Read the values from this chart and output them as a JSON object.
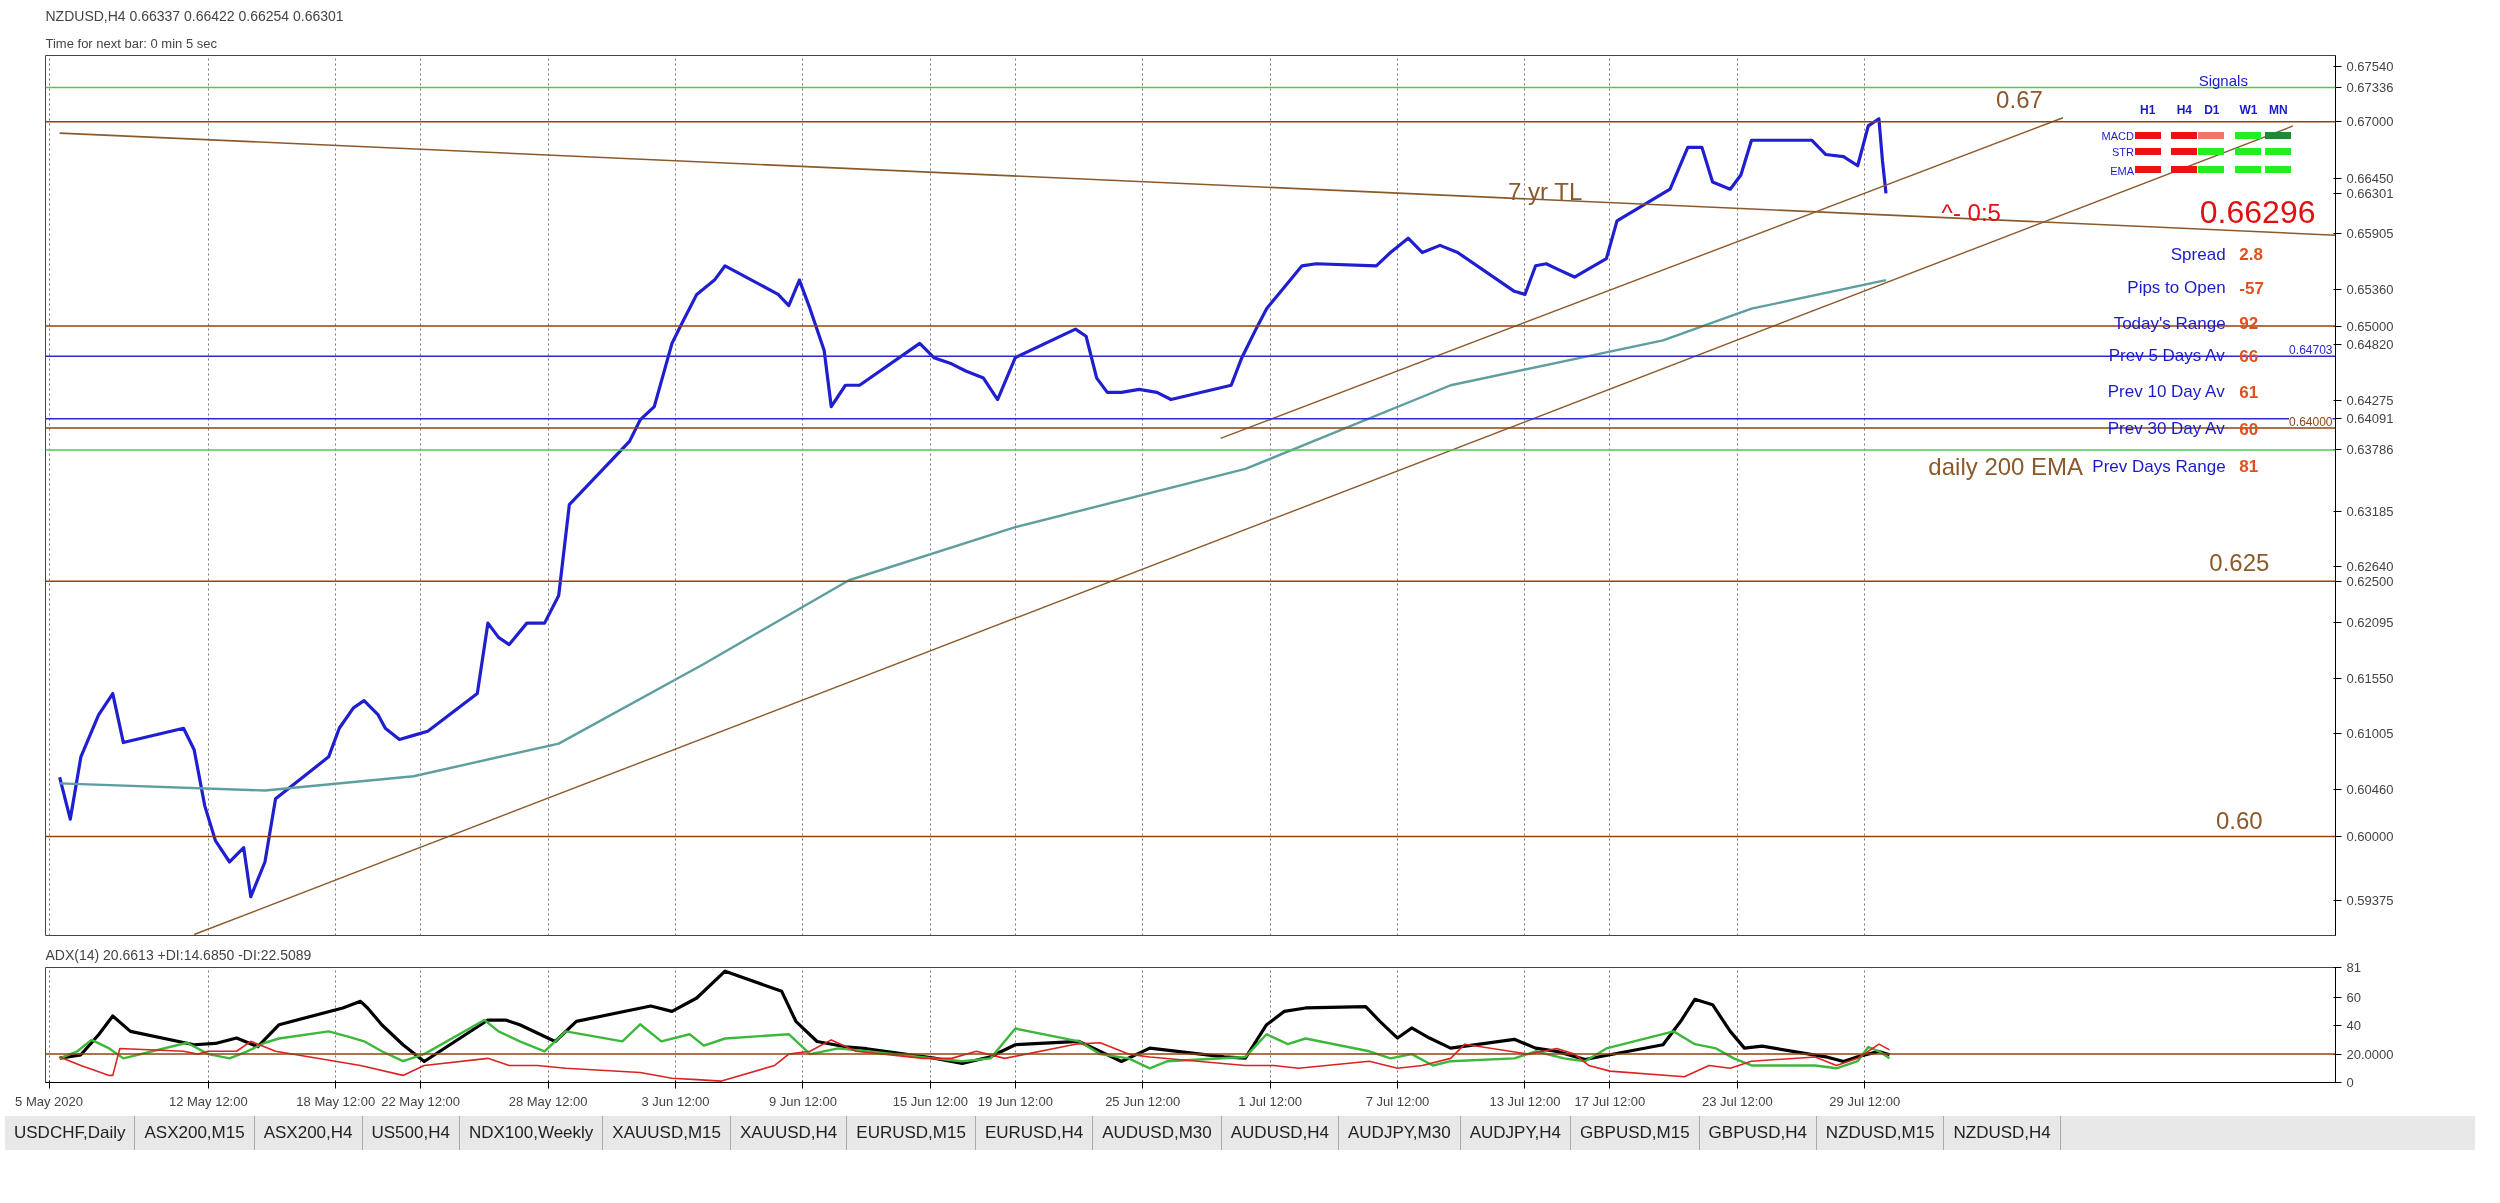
{
  "chart_data": [
    {
      "type": "line",
      "title": "NZDUSD,H4  0.66337 0.66422 0.66254 0.66301",
      "subtitle": "Time for next bar: 0 min 5 sec",
      "xlim": [
        "2020-05-04T20:00",
        "2020-08-20T16:00"
      ],
      "ylim": [
        0.5903,
        0.6765
      ],
      "tick_labels": "y",
      "grid": "x",
      "xticks": [
        {
          "value": "2020-05-05",
          "label": null
        },
        {
          "value": "2020-05-12T12:00",
          "label": null
        },
        {
          "value": "2020-05-18T12:00",
          "label": null
        },
        {
          "value": "2020-05-22T12:00",
          "label": null
        },
        {
          "value": "2020-05-28T12:00",
          "label": null
        },
        {
          "value": "2020-06-03T12:00",
          "label": null
        },
        {
          "value": "2020-06-09T12:00",
          "label": null
        },
        {
          "value": "2020-06-15T12:00",
          "label": null
        },
        {
          "value": "2020-06-19T12:00",
          "label": null
        },
        {
          "value": "2020-06-25T12:00",
          "label": null
        },
        {
          "value": "2020-07-01T12:00",
          "label": null
        },
        {
          "value": "2020-07-07T12:00",
          "label": null
        },
        {
          "value": "2020-07-13T12:00",
          "label": null
        },
        {
          "value": "2020-07-17T12:00",
          "label": null
        },
        {
          "value": "2020-07-23T12:00",
          "label": null
        },
        {
          "value": "2020-07-29T12:00",
          "label": null
        }
      ],
      "yticks": [
        {
          "value": 0.6754,
          "label": "0.67540"
        },
        {
          "value": 0.6645,
          "label": "0.66450"
        },
        {
          "value": 0.66301,
          "label": "0.66301"
        },
        {
          "value": 0.65905,
          "label": "0.65905"
        },
        {
          "value": 0.6536,
          "label": "0.65360"
        },
        {
          "value": 0.6482,
          "label": "0.64820"
        },
        {
          "value": 0.64275,
          "label": "0.64275"
        },
        {
          "value": 0.63185,
          "label": "0.63185"
        },
        {
          "value": 0.6264,
          "label": "0.62640"
        },
        {
          "value": 0.62095,
          "label": "0.62095"
        },
        {
          "value": 0.6155,
          "label": "0.61550"
        },
        {
          "value": 0.61005,
          "label": "0.61005"
        },
        {
          "value": 0.6046,
          "label": "0.60460"
        },
        {
          "value": 0.59375,
          "label": "0.59375"
        }
      ],
      "series": [
        {
          "color": "#1f1fd0",
          "x": [
            "2020-05-05T12:00",
            "2020-05-06T00:00",
            "2020-05-06T12:00",
            "2020-05-07T08:00",
            "2020-05-08T00:00",
            "2020-05-08T12:00",
            "2020-05-11T08:00",
            "2020-05-11T20:00",
            "2020-05-12T08:00",
            "2020-05-12T20:00",
            "2020-05-13T12:00",
            "2020-05-14T04:00",
            "2020-05-14T12:00",
            "2020-05-15T04:00",
            "2020-05-15T16:00",
            "2020-05-18T04:00",
            "2020-05-18T16:00",
            "2020-05-19T08:00",
            "2020-05-19T20:00",
            "2020-05-20T12:00",
            "2020-05-20T20:00",
            "2020-05-21T12:00",
            "2020-05-22T04:00",
            "2020-05-22T20:00",
            "2020-05-25T04:00",
            "2020-05-25T16:00",
            "2020-05-26T04:00",
            "2020-05-26T16:00",
            "2020-05-27T12:00",
            "2020-05-28T08:00",
            "2020-05-29T00:00",
            "2020-05-29T12:00",
            "2020-06-01T08:00",
            "2020-06-01T20:00",
            "2020-06-02T12:00",
            "2020-06-03T08:00",
            "2020-06-03T20:00",
            "2020-06-04T12:00",
            "2020-06-05T08:00",
            "2020-06-05T20:00",
            "2020-06-08T08:00",
            "2020-06-08T20:00",
            "2020-06-09T08:00",
            "2020-06-09T20:00",
            "2020-06-10T12:00",
            "2020-06-10T20:00",
            "2020-06-11T12:00",
            "2020-06-12T04:00",
            "2020-06-15T00:00",
            "2020-06-15T16:00",
            "2020-06-16T12:00",
            "2020-06-17T04:00",
            "2020-06-18T00:00",
            "2020-06-18T16:00",
            "2020-06-19T12:00",
            "2020-06-22T08:00",
            "2020-06-22T20:00",
            "2020-06-23T08:00",
            "2020-06-23T20:00",
            "2020-06-24T12:00",
            "2020-06-25T08:00",
            "2020-06-26T04:00",
            "2020-06-26T20:00",
            "2020-06-29T16:00",
            "2020-06-30T04:00",
            "2020-06-30T20:00",
            "2020-07-01T08:00",
            "2020-07-02T04:00",
            "2020-07-03T00:00",
            "2020-07-03T16:00",
            "2020-07-06T12:00",
            "2020-07-07T04:00",
            "2020-07-08T00:00",
            "2020-07-08T16:00",
            "2020-07-09T12:00",
            "2020-07-10T08:00",
            "2020-07-13T00:00",
            "2020-07-13T12:00",
            "2020-07-14T00:00",
            "2020-07-14T12:00",
            "2020-07-15T00:00",
            "2020-07-15T20:00",
            "2020-07-16T12:00",
            "2020-07-17T08:00",
            "2020-07-17T20:00",
            "2020-07-20T08:00",
            "2020-07-21T04:00",
            "2020-07-21T20:00",
            "2020-07-22T08:00",
            "2020-07-23T04:00",
            "2020-07-23T16:00",
            "2020-07-24T04:00",
            "2020-07-27T00:00",
            "2020-07-27T16:00",
            "2020-07-28T12:00",
            "2020-07-29T04:00",
            "2020-07-29T16:00",
            "2020-07-30T04:00",
            "2020-07-30T08:00",
            "2020-07-30T12:00"
          ],
          "values": [
            0.6058,
            0.6017,
            0.6078,
            0.6119,
            0.614,
            0.6092,
            0.6106,
            0.6085,
            0.603,
            0.5996,
            0.5975,
            0.5989,
            0.5941,
            0.5975,
            0.6037,
            0.6078,
            0.6106,
            0.6126,
            0.6133,
            0.6119,
            0.6106,
            0.6095,
            0.6099,
            0.6103,
            0.614,
            0.6209,
            0.6195,
            0.6188,
            0.6209,
            0.6209,
            0.6236,
            0.6325,
            0.6387,
            0.6408,
            0.6421,
            0.6483,
            0.6504,
            0.6531,
            0.6545,
            0.6559,
            0.6531,
            0.652,
            0.6545,
            0.6517,
            0.6476,
            0.6421,
            0.6442,
            0.6442,
            0.6483,
            0.6469,
            0.6463,
            0.6456,
            0.6449,
            0.6428,
            0.6469,
            0.6497,
            0.649,
            0.6449,
            0.6435,
            0.6435,
            0.6438,
            0.6435,
            0.6428,
            0.6442,
            0.6469,
            0.6497,
            0.6517,
            0.6538,
            0.6559,
            0.6561,
            0.6559,
            0.6572,
            0.6586,
            0.6572,
            0.6579,
            0.6572,
            0.6534,
            0.6531,
            0.6559,
            0.6561,
            0.6556,
            0.6548,
            0.6556,
            0.6566,
            0.6603,
            0.6634,
            0.6675,
            0.6675,
            0.6641,
            0.6634,
            0.6648,
            0.6682,
            0.6682,
            0.6668,
            0.6666,
            0.6657,
            0.6696,
            0.6703,
            0.6662,
            0.663
          ]
        },
        {
          "color": "#5f9ea0",
          "x": [
            "2020-05-05T12:00",
            "2020-05-15T04:00",
            "2020-05-22T04:00",
            "2020-05-29T00:00",
            "2020-06-04T20:00",
            "2020-06-11T16:00",
            "2020-06-19T12:00",
            "2020-06-30T08:00",
            "2020-07-10T00:00",
            "2020-07-20T00:00",
            "2020-07-24T04:00",
            "2020-07-30T12:00"
          ],
          "values": [
            0.6052,
            0.6045,
            0.6059,
            0.6091,
            0.6169,
            0.6251,
            0.6303,
            0.636,
            0.6442,
            0.6486,
            0.6517,
            0.6545
          ]
        },
        {
          "color": "#8b5a2b",
          "x": [
            "2020-05-05T12:00",
            "2020-08-20T16:00"
          ],
          "values": [
            0.6689,
            0.6589
          ]
        },
        {
          "color": "#8b5a2b",
          "x": [
            "2020-06-29T04:00",
            "2020-08-07T20:00"
          ],
          "values": [
            0.639,
            0.6704
          ]
        },
        {
          "color": "#8b5a2b",
          "x": [
            "2020-05-11T20:00",
            "2020-08-18T16:00"
          ],
          "values": [
            0.5904,
            0.6696
          ]
        }
      ],
      "ref_lines": [
        {
          "axis": "y",
          "value": 0.67336,
          "label": "0.67336",
          "color": "#4ccc4c"
        },
        {
          "axis": "y",
          "value": 0.67,
          "label": "0.67000",
          "color": "#8b4513"
        },
        {
          "axis": "y",
          "value": 0.65,
          "label": "0.65000",
          "color": "#8b4513"
        },
        {
          "axis": "y",
          "value": 0.64703,
          "label": "0.64703",
          "color": "#2a2ad0"
        },
        {
          "axis": "y",
          "value": 0.64091,
          "label": "0.64091",
          "color": "#2a2ad0"
        },
        {
          "axis": "y",
          "value": 0.64,
          "label": "0.64000",
          "color": "#8b4513"
        },
        {
          "axis": "y",
          "value": 0.63786,
          "label": "0.63786",
          "color": "#4ccc4c"
        },
        {
          "axis": "y",
          "value": 0.625,
          "label": "0.62500",
          "color": "#8b4513"
        },
        {
          "axis": "y",
          "value": 0.6,
          "label": "0.60000",
          "color": "#8b4513"
        }
      ],
      "annotations": [
        "7 yr TL",
        "0.67",
        "daily 200 EMA",
        "^- 0:5",
        "0.625",
        "0.60",
        "Signals",
        "H1",
        "H4",
        "D1",
        "W1",
        "MN",
        "MACD",
        "STR",
        "EMA",
        "0.66296",
        "Spread",
        "2.8",
        "Pips to Open",
        "-57",
        "Today's Range",
        "92",
        "Prev 5 Days Av",
        "66",
        "Prev 10 Day Av",
        "61",
        "Prev 30 Day Av",
        "60",
        "Prev Days Range",
        "81"
      ]
    },
    {
      "type": "line",
      "title": "ADX(14) 20.6613 +DI:14.6850 -DI:22.5089",
      "xlim": [
        "2020-05-04T20:00",
        "2020-08-20T16:00"
      ],
      "ylim": [
        0,
        81
      ],
      "grid": "x",
      "xticks": [
        {
          "value": "2020-05-05",
          "label": "5 May 2020"
        },
        {
          "value": "2020-05-12T12:00",
          "label": "12 May 12:00"
        },
        {
          "value": "2020-05-18T12:00",
          "label": "18 May 12:00"
        },
        {
          "value": "2020-05-22T12:00",
          "label": "22 May 12:00"
        },
        {
          "value": "2020-05-28T12:00",
          "label": "28 May 12:00"
        },
        {
          "value": "2020-06-03T12:00",
          "label": "3 Jun 12:00"
        },
        {
          "value": "2020-06-09T12:00",
          "label": "9 Jun 12:00"
        },
        {
          "value": "2020-06-15T12:00",
          "label": "15 Jun 12:00"
        },
        {
          "value": "2020-06-19T12:00",
          "label": "19 Jun 12:00"
        },
        {
          "value": "2020-06-25T12:00",
          "label": "25 Jun 12:00"
        },
        {
          "value": "2020-07-01T12:00",
          "label": "1 Jul 12:00"
        },
        {
          "value": "2020-07-07T12:00",
          "label": "7 Jul 12:00"
        },
        {
          "value": "2020-07-13T12:00",
          "label": "13 Jul 12:00"
        },
        {
          "value": "2020-07-17T12:00",
          "label": "17 Jul 12:00"
        },
        {
          "value": "2020-07-23T12:00",
          "label": "23 Jul 12:00"
        },
        {
          "value": "2020-07-29T12:00",
          "label": "29 Jul 12:00"
        }
      ],
      "yticks": [
        0,
        40,
        60,
        81
      ],
      "series": [
        {
          "color": "#000000",
          "x": [
            "2020-05-05T12:00",
            "2020-05-06T12:00",
            "2020-05-07T08:00",
            "2020-05-08T00:00",
            "2020-05-08T20:00",
            "2020-05-11T20:00",
            "2020-05-12T20:00",
            "2020-05-13T20:00",
            "2020-05-14T20:00",
            "2020-05-15T20:00",
            "2020-05-18T20:00",
            "2020-05-19T16:00",
            "2020-05-20T00:00",
            "2020-05-20T16:00",
            "2020-05-21T16:00",
            "2020-05-22T16:00",
            "2020-05-25T16:00",
            "2020-05-26T12:00",
            "2020-05-27T04:00",
            "2020-05-28T20:00",
            "2020-05-29T20:00",
            "2020-06-02T08:00",
            "2020-06-03T08:00",
            "2020-06-04T12:00",
            "2020-06-05T20:00",
            "2020-06-08T12:00",
            "2020-06-09T04:00",
            "2020-06-10T04:00",
            "2020-06-11T12:00",
            "2020-06-12T12:00",
            "2020-06-15T16:00",
            "2020-06-17T00:00",
            "2020-06-18T08:00",
            "2020-06-19T12:00",
            "2020-06-22T12:00",
            "2020-06-23T12:00",
            "2020-06-24T12:00",
            "2020-06-25T20:00",
            "2020-06-29T08:00",
            "2020-06-30T08:00",
            "2020-07-01T08:00",
            "2020-07-02T04:00",
            "2020-07-03T04:00",
            "2020-07-06T00:00",
            "2020-07-06T16:00",
            "2020-07-07T12:00",
            "2020-07-08T04:00",
            "2020-07-09T00:00",
            "2020-07-10T00:00",
            "2020-07-13T00:00",
            "2020-07-14T00:00",
            "2020-07-15T00:00",
            "2020-07-16T08:00",
            "2020-07-17T00:00",
            "2020-07-20T00:00",
            "2020-07-20T20:00",
            "2020-07-21T12:00",
            "2020-07-22T08:00",
            "2020-07-23T04:00",
            "2020-07-23T20:00",
            "2020-07-24T16:00",
            "2020-07-27T16:00",
            "2020-07-28T12:00",
            "2020-07-29T04:00",
            "2020-07-30T04:00",
            "2020-07-30T16:00"
          ],
          "values": [
            17.2,
            19.5,
            33.6,
            46.8,
            36,
            26.6,
            27.5,
            31.3,
            25.2,
            40.7,
            52.5,
            57.2,
            52.5,
            40.7,
            26.6,
            14.8,
            44,
            44,
            40.7,
            28.9,
            43.1,
            53.9,
            50.1,
            59.5,
            78.4,
            64.2,
            43.1,
            28.9,
            25.2,
            23.8,
            17.2,
            13.4,
            18.1,
            26.6,
            28.9,
            21.9,
            14.8,
            24.2,
            18.1,
            17.2,
            40.7,
            50.1,
            52.5,
            53.4,
            43.1,
            31.3,
            38.4,
            31.3,
            24.2,
            30.4,
            24.2,
            21.9,
            16.2,
            18.1,
            26.6,
            43.1,
            58.6,
            54.8,
            36,
            24.2,
            25.6,
            18.1,
            14.8,
            18.1,
            21.9,
            19.5
          ]
        },
        {
          "color": "#3cb83c",
          "x": [
            "2020-05-05T12:00",
            "2020-05-06T08:00",
            "2020-05-07T00:00",
            "2020-05-07T20:00",
            "2020-05-08T12:00",
            "2020-05-11T12:00",
            "2020-05-12T12:00",
            "2020-05-13T12:00",
            "2020-05-14T08:00",
            "2020-05-15T04:00",
            "2020-05-15T20:00",
            "2020-05-18T04:00",
            "2020-05-19T04:00",
            "2020-05-19T20:00",
            "2020-05-20T16:00",
            "2020-05-21T16:00",
            "2020-05-22T16:00",
            "2020-05-25T12:00",
            "2020-05-26T04:00",
            "2020-05-27T04:00",
            "2020-05-28T08:00",
            "2020-05-29T08:00",
            "2020-06-01T00:00",
            "2020-06-01T20:00",
            "2020-06-02T20:00",
            "2020-06-04T04:00",
            "2020-06-04T20:00",
            "2020-06-05T20:00",
            "2020-06-08T20:00",
            "2020-06-09T20:00",
            "2020-06-11T04:00",
            "2020-06-12T12:00",
            "2020-06-15T16:00",
            "2020-06-17T00:00",
            "2020-06-18T08:00",
            "2020-06-19T12:00",
            "2020-06-22T12:00",
            "2020-06-23T12:00",
            "2020-06-24T20:00",
            "2020-06-25T20:00",
            "2020-06-26T16:00",
            "2020-06-30T08:00",
            "2020-07-01T08:00",
            "2020-07-02T08:00",
            "2020-07-03T04:00",
            "2020-07-06T04:00",
            "2020-07-07T04:00",
            "2020-07-08T04:00",
            "2020-07-09T04:00",
            "2020-07-10T00:00",
            "2020-07-13T00:00",
            "2020-07-14T00:00",
            "2020-07-15T08:00",
            "2020-07-16T08:00",
            "2020-07-17T08:00",
            "2020-07-20T12:00",
            "2020-07-21T12:00",
            "2020-07-22T12:00",
            "2020-07-23T08:00",
            "2020-07-24T04:00",
            "2020-07-27T04:00",
            "2020-07-28T04:00",
            "2020-07-29T04:00",
            "2020-07-29T16:00",
            "2020-07-30T04:00",
            "2020-07-30T16:00"
          ],
          "values": [
            17,
            22,
            30,
            24,
            17,
            28,
            20,
            17,
            22,
            28,
            31,
            36,
            32,
            29,
            22,
            15,
            20,
            44,
            36,
            29,
            22,
            36,
            29,
            41,
            29,
            34,
            26,
            31,
            34,
            20,
            24,
            22,
            17,
            15,
            17,
            38,
            29,
            20,
            17,
            10,
            15,
            18,
            34,
            27,
            31,
            22,
            17,
            20,
            12,
            15,
            17,
            22,
            17,
            15,
            24,
            36,
            27,
            24,
            17,
            12,
            12,
            10,
            15,
            25,
            22,
            17
          ]
        },
        {
          "color": "#dd2222",
          "x": [
            "2020-05-05T12:00",
            "2020-05-06T12:00",
            "2020-05-07T20:00",
            "2020-05-08T00:00",
            "2020-05-08T08:00",
            "2020-05-11T08:00",
            "2020-05-12T00:00",
            "2020-05-12T12:00",
            "2020-05-13T20:00",
            "2020-05-14T12:00",
            "2020-05-15T16:00",
            "2020-05-19T16:00",
            "2020-05-21T16:00",
            "2020-05-22T16:00",
            "2020-05-25T16:00",
            "2020-05-26T16:00",
            "2020-05-28T00:00",
            "2020-05-29T08:00",
            "2020-06-01T20:00",
            "2020-06-03T08:00",
            "2020-06-04T12:00",
            "2020-06-05T16:00",
            "2020-06-08T04:00",
            "2020-06-08T20:00",
            "2020-06-09T20:00",
            "2020-06-10T20:00",
            "2020-06-12T00:00",
            "2020-06-15T04:00",
            "2020-06-16T12:00",
            "2020-06-17T16:00",
            "2020-06-19T00:00",
            "2020-06-22T08:00",
            "2020-06-23T12:00",
            "2020-06-24T20:00",
            "2020-06-25T20:00",
            "2020-06-30T08:00",
            "2020-07-01T16:00",
            "2020-07-02T20:00",
            "2020-07-06T04:00",
            "2020-07-07T12:00",
            "2020-07-08T16:00",
            "2020-07-10T00:00",
            "2020-07-10T16:00",
            "2020-07-13T16:00",
            "2020-07-15T00:00",
            "2020-07-15T20:00",
            "2020-07-16T12:00",
            "2020-07-17T12:00",
            "2020-07-21T00:00",
            "2020-07-22T04:00",
            "2020-07-23T04:00",
            "2020-07-24T04:00",
            "2020-07-27T04:00",
            "2020-07-28T04:00",
            "2020-07-29T04:00",
            "2020-07-30T04:00",
            "2020-07-30T16:00"
          ],
          "values": [
            18,
            12,
            5,
            5,
            24,
            22,
            20,
            22,
            22,
            29,
            22,
            12,
            5,
            12,
            17,
            12,
            12,
            10,
            7,
            3,
            2,
            1,
            12,
            20,
            22,
            30,
            22,
            17,
            17,
            22,
            17,
            27,
            28,
            20,
            18,
            12,
            12,
            10,
            15,
            10,
            12,
            17,
            27,
            20,
            24,
            20,
            12,
            8,
            4,
            12,
            10,
            15,
            18,
            12,
            17,
            27,
            23
          ]
        }
      ],
      "ref_lines": [
        {
          "axis": "y",
          "value": 20,
          "label": "20.0000",
          "color": "#8b4513"
        }
      ]
    },
    {
      "type": "other",
      "annotations": [
        "USDCHF,Daily",
        "ASX200,M15",
        "ASX200,H4",
        "US500,H4",
        "NDX100,Weekly",
        "XAUUSD,M15",
        "XAUUSD,H4",
        "EURUSD,M15",
        "EURUSD,H4",
        "AUDUSD,M30",
        "AUDUSD,H4",
        "AUDJPY,M30",
        "AUDJPY,H4",
        "GBPUSD,M15",
        "GBPUSD,H4",
        "NZDUSD,M15",
        "NZDUSD,H4"
      ]
    }
  ]
}
